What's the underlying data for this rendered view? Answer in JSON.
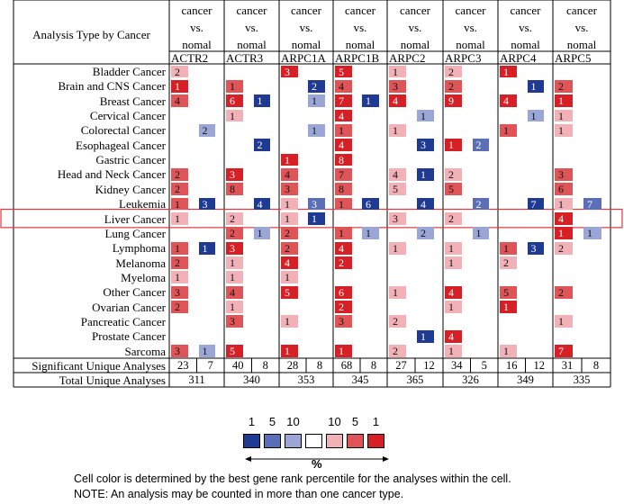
{
  "header": {
    "row_label": "Analysis Type by Cancer",
    "comparison": [
      "cancer",
      "vs.",
      "nomal"
    ],
    "genes": [
      "ACTR2",
      "ACTR3",
      "ARPC1A",
      "ARPC1B",
      "ARPC2",
      "ARPC3",
      "ARPC4",
      "ARPC5"
    ]
  },
  "colors": {
    "up_1": "#d71f26",
    "up_5": "#df5557",
    "up_10": "#f2b1b7",
    "down_1": "#1f3a93",
    "down_5": "#5a6fb8",
    "down_10": "#9aa6d6",
    "highlight_box": "#e0383e"
  },
  "cancers": [
    {
      "name": "Bladder Cancer",
      "cells": [
        [
          "up_10",
          "2"
        ],
        null,
        null,
        null,
        [
          "up_1",
          "3"
        ],
        null,
        [
          "up_1",
          "5"
        ],
        null,
        [
          "up_10",
          "1"
        ],
        null,
        [
          "up_10",
          "2"
        ],
        null,
        [
          "up_1",
          "1"
        ],
        null,
        null,
        null
      ]
    },
    {
      "name": "Brain and CNS Cancer",
      "cells": [
        [
          "up_1",
          "1"
        ],
        null,
        [
          "up_5",
          "1"
        ],
        null,
        null,
        [
          "down_1",
          "2"
        ],
        [
          "up_5",
          "4"
        ],
        null,
        [
          "up_5",
          "3"
        ],
        null,
        [
          "up_5",
          "2"
        ],
        null,
        null,
        [
          "down_1",
          "1"
        ],
        [
          "up_5",
          "2"
        ],
        null
      ]
    },
    {
      "name": "Breast Cancer",
      "cells": [
        [
          "up_5",
          "4"
        ],
        null,
        [
          "up_1",
          "6"
        ],
        [
          "down_1",
          "1"
        ],
        null,
        [
          "down_10",
          "1"
        ],
        [
          "up_1",
          "7"
        ],
        [
          "down_1",
          "1"
        ],
        [
          "up_1",
          "4"
        ],
        null,
        [
          "up_1",
          "9"
        ],
        null,
        [
          "up_1",
          "4"
        ],
        null,
        [
          "up_1",
          "1"
        ],
        null
      ]
    },
    {
      "name": "Cervical Cancer",
      "cells": [
        null,
        null,
        [
          "up_10",
          "1"
        ],
        null,
        null,
        null,
        [
          "up_1",
          "4"
        ],
        null,
        null,
        [
          "down_10",
          "1"
        ],
        null,
        null,
        null,
        [
          "down_10",
          "1"
        ],
        [
          "up_10",
          "1"
        ],
        null
      ]
    },
    {
      "name": "Colorectal Cancer",
      "cells": [
        null,
        [
          "down_10",
          "2"
        ],
        null,
        null,
        null,
        [
          "down_10",
          "1"
        ],
        [
          "up_5",
          "1"
        ],
        null,
        [
          "up_10",
          "1"
        ],
        null,
        null,
        null,
        [
          "up_5",
          "1"
        ],
        null,
        [
          "up_10",
          "1"
        ],
        null
      ]
    },
    {
      "name": "Esophageal Cancer",
      "cells": [
        null,
        null,
        null,
        [
          "down_1",
          "2"
        ],
        null,
        null,
        [
          "up_1",
          "4"
        ],
        null,
        null,
        [
          "down_1",
          "3"
        ],
        [
          "up_1",
          "1"
        ],
        [
          "down_5",
          "2"
        ],
        null,
        null,
        null,
        null
      ]
    },
    {
      "name": "Gastric Cancer",
      "cells": [
        null,
        null,
        null,
        null,
        [
          "up_1",
          "1"
        ],
        null,
        [
          "up_1",
          "8"
        ],
        null,
        null,
        null,
        null,
        null,
        null,
        null,
        null,
        null
      ]
    },
    {
      "name": "Head and Neck Cancer",
      "cells": [
        [
          "up_5",
          "2"
        ],
        null,
        [
          "up_1",
          "3"
        ],
        null,
        [
          "up_5",
          "4"
        ],
        null,
        [
          "up_5",
          "7"
        ],
        null,
        [
          "up_10",
          "4"
        ],
        [
          "down_1",
          "1"
        ],
        [
          "up_10",
          "2"
        ],
        null,
        null,
        null,
        [
          "up_5",
          "3"
        ],
        null
      ]
    },
    {
      "name": "Kidney Cancer",
      "cells": [
        [
          "up_5",
          "2"
        ],
        null,
        [
          "up_5",
          "8"
        ],
        null,
        [
          "up_5",
          "3"
        ],
        null,
        [
          "up_5",
          "8"
        ],
        null,
        [
          "up_10",
          "5"
        ],
        null,
        [
          "up_5",
          "5"
        ],
        null,
        null,
        null,
        [
          "up_5",
          "6"
        ],
        null
      ]
    },
    {
      "name": "Leukemia",
      "cells": [
        [
          "up_5",
          "1"
        ],
        [
          "down_1",
          "3"
        ],
        null,
        [
          "down_1",
          "4"
        ],
        [
          "up_10",
          "1"
        ],
        [
          "down_5",
          "3"
        ],
        [
          "up_5",
          "1"
        ],
        [
          "down_1",
          "6"
        ],
        null,
        [
          "down_1",
          "4"
        ],
        null,
        [
          "down_5",
          "2"
        ],
        null,
        [
          "down_1",
          "7"
        ],
        [
          "up_10",
          "1"
        ],
        [
          "down_5",
          "7"
        ]
      ]
    },
    {
      "name": "Liver Cancer",
      "cells": [
        [
          "up_10",
          "1"
        ],
        null,
        [
          "up_10",
          "2"
        ],
        null,
        [
          "up_10",
          "1"
        ],
        [
          "down_1",
          "1"
        ],
        null,
        null,
        [
          "up_10",
          "3"
        ],
        null,
        [
          "up_10",
          "2"
        ],
        null,
        null,
        null,
        [
          "up_1",
          "4"
        ],
        null
      ]
    },
    {
      "name": "Lung Cancer",
      "cells": [
        null,
        null,
        [
          "up_5",
          "2"
        ],
        [
          "down_10",
          "1"
        ],
        [
          "up_5",
          "2"
        ],
        null,
        [
          "up_5",
          "1"
        ],
        [
          "down_10",
          "1"
        ],
        null,
        [
          "down_10",
          "2"
        ],
        null,
        [
          "down_10",
          "1"
        ],
        null,
        null,
        [
          "up_1",
          "1"
        ],
        [
          "down_10",
          "1"
        ]
      ]
    },
    {
      "name": "Lymphoma",
      "cells": [
        [
          "up_5",
          "1"
        ],
        [
          "down_1",
          "1"
        ],
        [
          "up_1",
          "3"
        ],
        null,
        [
          "up_5",
          "2"
        ],
        null,
        [
          "up_1",
          "4"
        ],
        null,
        [
          "up_10",
          "1"
        ],
        null,
        [
          "up_10",
          "1"
        ],
        null,
        [
          "up_5",
          "1"
        ],
        [
          "down_1",
          "3"
        ],
        [
          "up_10",
          "2"
        ],
        null
      ]
    },
    {
      "name": "Melanoma",
      "cells": [
        [
          "up_5",
          "2"
        ],
        null,
        [
          "up_10",
          "1"
        ],
        null,
        [
          "up_1",
          "4"
        ],
        null,
        [
          "up_1",
          "2"
        ],
        null,
        null,
        null,
        [
          "up_10",
          "1"
        ],
        null,
        [
          "up_10",
          "2"
        ],
        null,
        null,
        null
      ]
    },
    {
      "name": "Myeloma",
      "cells": [
        [
          "up_10",
          "1"
        ],
        null,
        [
          "up_10",
          "1"
        ],
        null,
        [
          "up_10",
          "1"
        ],
        null,
        null,
        null,
        null,
        null,
        null,
        null,
        null,
        null,
        null,
        null
      ]
    },
    {
      "name": "Other Cancer",
      "cells": [
        [
          "up_5",
          "3"
        ],
        null,
        [
          "up_5",
          "4"
        ],
        null,
        [
          "up_1",
          "5"
        ],
        null,
        [
          "up_1",
          "6"
        ],
        null,
        [
          "up_10",
          "1"
        ],
        null,
        [
          "up_1",
          "4"
        ],
        null,
        [
          "up_5",
          "5"
        ],
        null,
        [
          "up_5",
          "2"
        ],
        null
      ]
    },
    {
      "name": "Ovarian Cancer",
      "cells": [
        [
          "up_5",
          "2"
        ],
        null,
        [
          "up_10",
          "1"
        ],
        null,
        null,
        null,
        [
          "up_1",
          "2"
        ],
        null,
        null,
        null,
        [
          "up_10",
          "1"
        ],
        null,
        [
          "up_1",
          "1"
        ],
        null,
        null,
        null
      ]
    },
    {
      "name": "Pancreatic Cancer",
      "cells": [
        null,
        null,
        [
          "up_5",
          "3"
        ],
        null,
        [
          "up_10",
          "1"
        ],
        null,
        [
          "up_5",
          "3"
        ],
        null,
        [
          "up_10",
          "2"
        ],
        null,
        null,
        null,
        null,
        null,
        [
          "up_10",
          "1"
        ],
        null
      ]
    },
    {
      "name": "Prostate Cancer",
      "cells": [
        null,
        null,
        null,
        null,
        null,
        null,
        null,
        null,
        null,
        [
          "down_1",
          "1"
        ],
        [
          "up_1",
          "4"
        ],
        null,
        null,
        null,
        null,
        null
      ]
    },
    {
      "name": "Sarcoma",
      "cells": [
        [
          "up_5",
          "3"
        ],
        [
          "down_10",
          "1"
        ],
        [
          "up_1",
          "5"
        ],
        null,
        [
          "up_1",
          "1"
        ],
        null,
        [
          "up_1",
          "1"
        ],
        null,
        [
          "up_10",
          "2"
        ],
        null,
        [
          "up_10",
          "1"
        ],
        null,
        [
          "up_10",
          "1"
        ],
        null,
        [
          "up_1",
          "7"
        ],
        null
      ]
    }
  ],
  "significant": {
    "label": "Significant Unique Analyses",
    "values": [
      "23",
      "7",
      "40",
      "8",
      "28",
      "8",
      "68",
      "8",
      "27",
      "12",
      "34",
      "5",
      "16",
      "12",
      "31",
      "8"
    ]
  },
  "total": {
    "label": "Total Unique Analyses",
    "values": [
      "311",
      "340",
      "353",
      "345",
      "365",
      "326",
      "349",
      "335"
    ]
  },
  "highlight_row": "Liver Cancer",
  "legend": {
    "down_labels": [
      "1",
      "5",
      "10"
    ],
    "up_labels": [
      "10",
      "5",
      "1"
    ],
    "unit": "%"
  },
  "notes": [
    "Cell color is determined by the best gene rank percentile for the analyses within the cell.",
    "NOTE: An analysis may be counted in more than one cancer type."
  ]
}
